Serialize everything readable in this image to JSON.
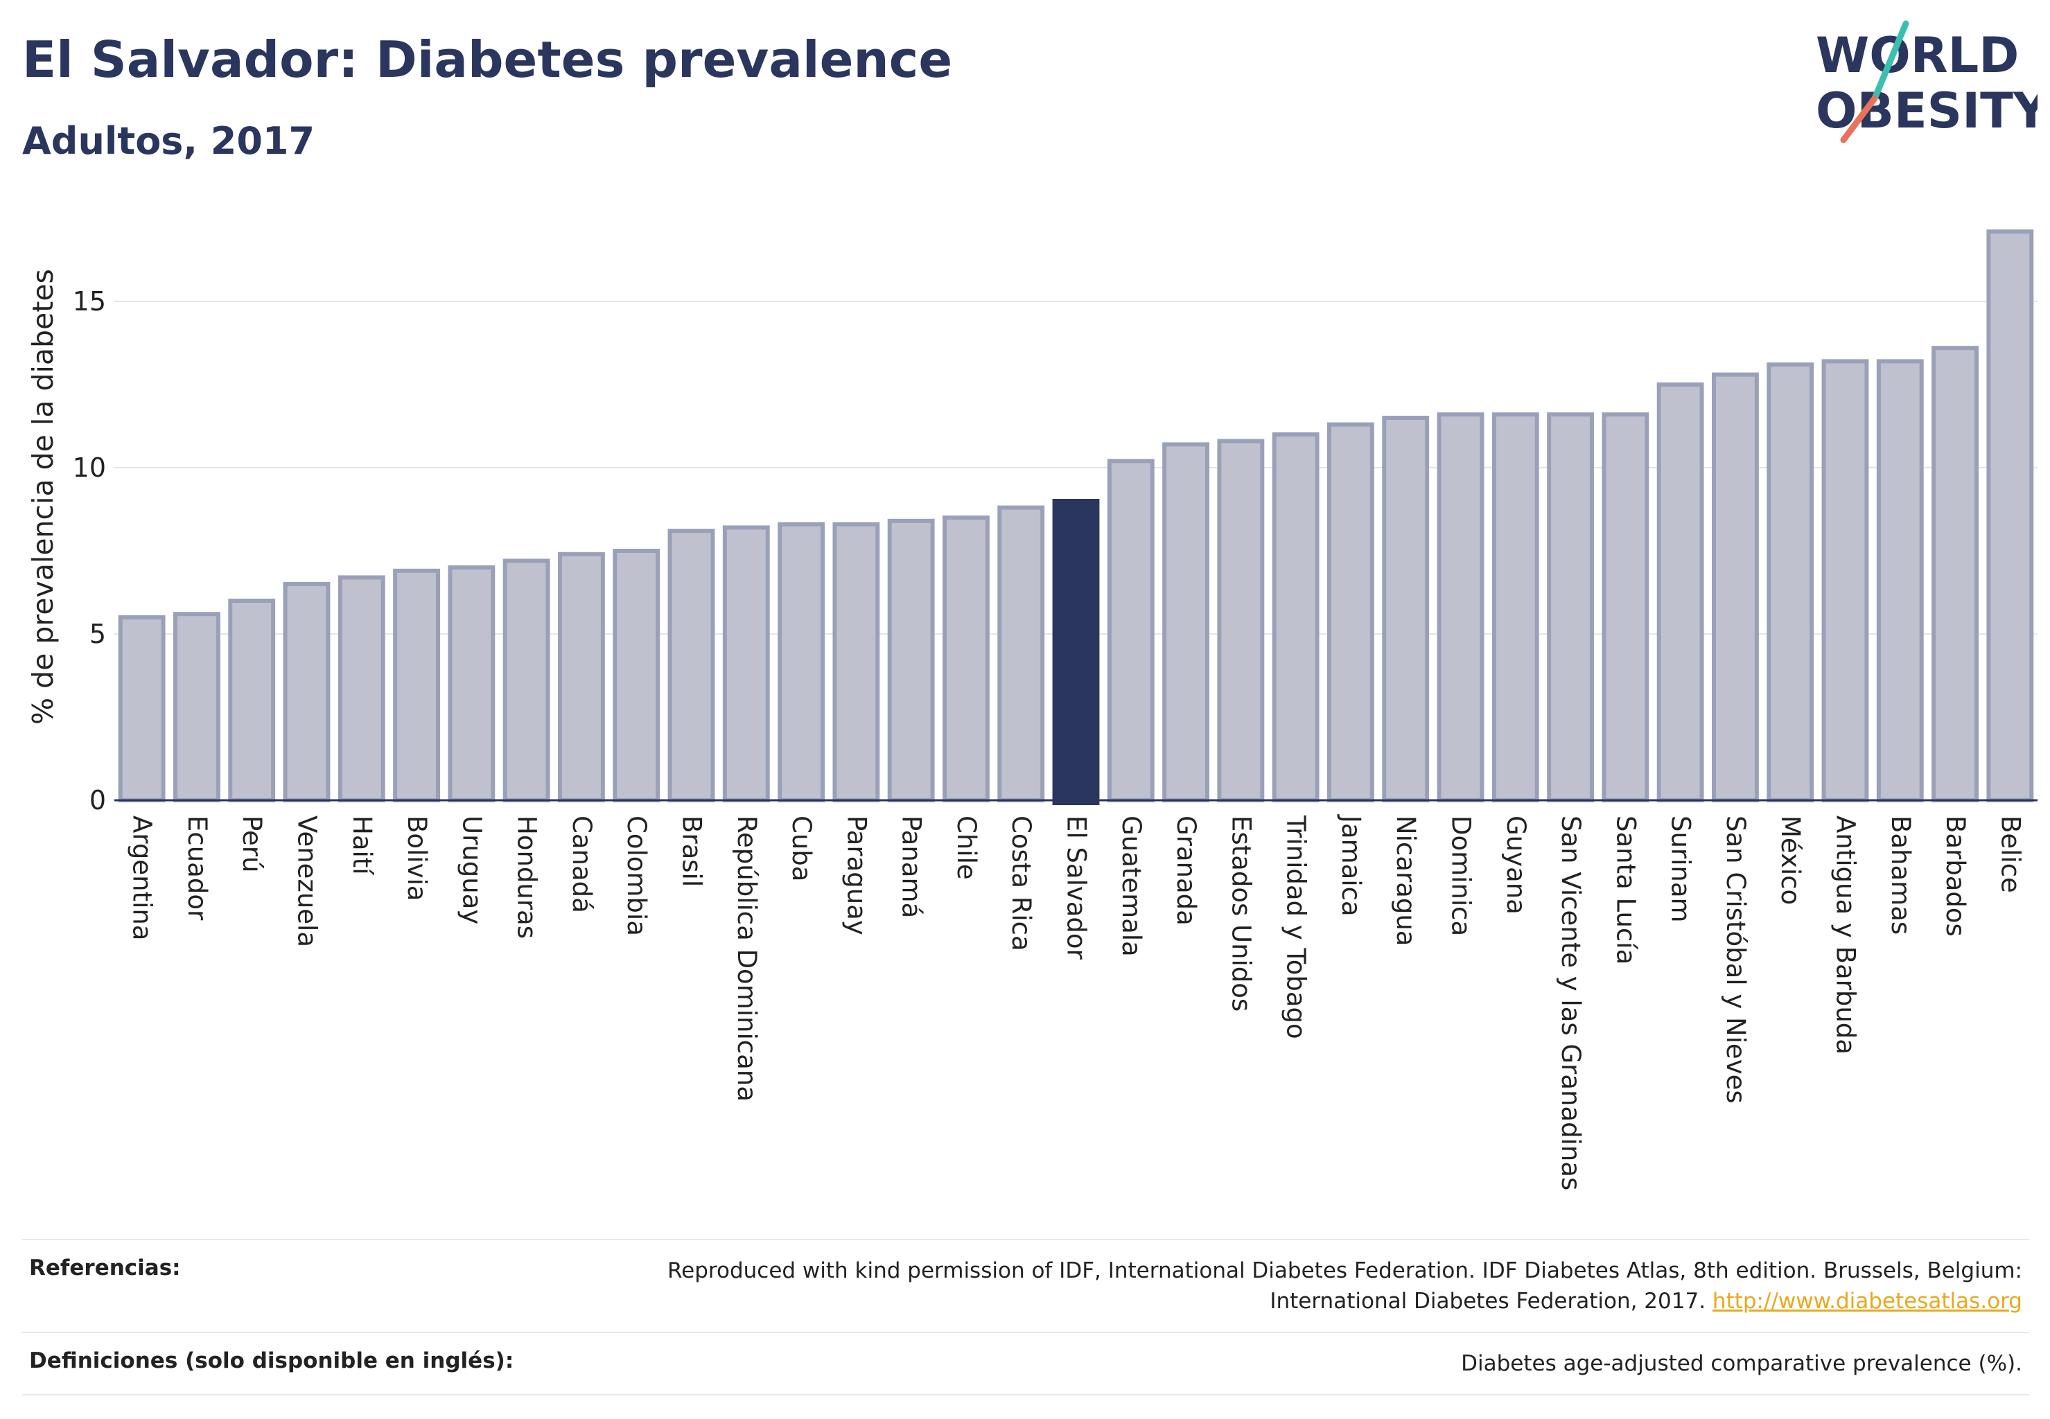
{
  "header": {
    "title": "El Salvador: Diabetes prevalence",
    "subtitle": "Adultos, 2017"
  },
  "logo": {
    "line1": "WORLD",
    "line2": "OBESITY"
  },
  "chart_data": {
    "type": "bar",
    "ylabel": "% de prevalencia de la diabetes",
    "xlabel": "",
    "ylim": [
      0,
      17.5
    ],
    "yticks": [
      0,
      5,
      10,
      15
    ],
    "grid": true,
    "highlight": "El Salvador",
    "colors": {
      "bar": "#bfc2ce",
      "bar_edge": "#9aa0b8",
      "highlight": "#2b365e"
    },
    "categories": [
      "Argentina",
      "Ecuador",
      "Perú",
      "Venezuela",
      "Haití",
      "Bolivia",
      "Uruguay",
      "Honduras",
      "Canadá",
      "Colombia",
      "Brasil",
      "República Dominicana",
      "Cuba",
      "Paraguay",
      "Panamá",
      "Chile",
      "Costa Rica",
      "El Salvador",
      "Guatemala",
      "Granada",
      "Estados Unidos",
      "Trinidad y Tobago",
      "Jamaica",
      "Nicaragua",
      "Dominica",
      "Guyana",
      "San Vicente y las Granadinas",
      "Santa Lucía",
      "Surinam",
      "San Cristóbal y Nieves",
      "México",
      "Antigua y Barbuda",
      "Bahamas",
      "Barbados",
      "Belice"
    ],
    "values": [
      5.5,
      5.6,
      6.0,
      6.5,
      6.7,
      6.9,
      7.0,
      7.2,
      7.4,
      7.5,
      8.1,
      8.2,
      8.3,
      8.3,
      8.4,
      8.5,
      8.8,
      9.0,
      10.2,
      10.7,
      10.8,
      11.0,
      11.3,
      11.5,
      11.6,
      11.6,
      11.6,
      11.6,
      12.5,
      12.8,
      13.1,
      13.2,
      13.2,
      13.6,
      17.1
    ]
  },
  "footer": {
    "references_label": "Referencias:",
    "references_text": "Reproduced with kind permission of IDF, International Diabetes Federation. IDF Diabetes Atlas, 8th edition. Brussels, Belgium: International Diabetes Federation, 2017.",
    "references_link": "http://www.diabetesatlas.org",
    "definitions_label": "Definiciones (solo disponible en inglés):",
    "definitions_text": "Diabetes age-adjusted comparative prevalence (%)."
  }
}
